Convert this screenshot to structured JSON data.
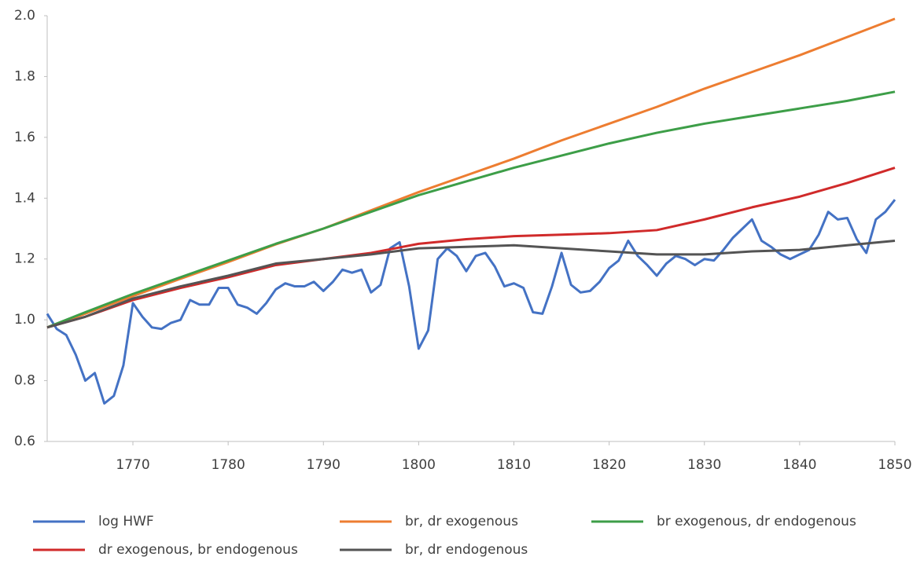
{
  "chart_data": {
    "type": "line",
    "xlim": [
      1761,
      1850
    ],
    "xticks": [
      1770,
      1780,
      1790,
      1800,
      1810,
      1820,
      1830,
      1840,
      1850
    ],
    "ylim": [
      0.6,
      2.0
    ],
    "yticks": [
      0.6,
      0.8,
      {
        "value": 1,
        "label": "1.0"
      },
      1.2,
      1.4,
      1.6,
      1.8,
      {
        "value": 2,
        "label": "2.0"
      }
    ],
    "legend": "bottom",
    "series": [
      {
        "name": "log HWF",
        "color": "#4472c4",
        "x": [
          1761,
          1762,
          1763,
          1764,
          1765,
          1766,
          1767,
          1768,
          1769,
          1770,
          1771,
          1772,
          1773,
          1774,
          1775,
          1776,
          1777,
          1778,
          1779,
          1780,
          1781,
          1782,
          1783,
          1784,
          1785,
          1786,
          1787,
          1788,
          1789,
          1790,
          1791,
          1792,
          1793,
          1794,
          1795,
          1796,
          1797,
          1798,
          1799,
          1800,
          1801,
          1802,
          1803,
          1804,
          1805,
          1806,
          1807,
          1808,
          1809,
          1810,
          1811,
          1812,
          1813,
          1814,
          1815,
          1816,
          1817,
          1818,
          1819,
          1820,
          1821,
          1822,
          1823,
          1824,
          1825,
          1826,
          1827,
          1828,
          1829,
          1830,
          1831,
          1832,
          1833,
          1834,
          1835,
          1836,
          1837,
          1838,
          1839,
          1840,
          1841,
          1842,
          1843,
          1844,
          1845,
          1846,
          1847,
          1848,
          1849,
          1850
        ],
        "values": [
          1.02,
          0.97,
          0.95,
          0.885,
          0.8,
          0.825,
          0.725,
          0.75,
          0.85,
          1.055,
          1.01,
          0.975,
          0.97,
          0.99,
          1.0,
          1.065,
          1.05,
          1.05,
          1.105,
          1.105,
          1.05,
          1.04,
          1.02,
          1.055,
          1.1,
          1.12,
          1.11,
          1.11,
          1.125,
          1.095,
          1.125,
          1.165,
          1.155,
          1.165,
          1.09,
          1.115,
          1.235,
          1.255,
          1.11,
          0.905,
          0.965,
          1.2,
          1.235,
          1.21,
          1.16,
          1.21,
          1.22,
          1.175,
          1.11,
          1.12,
          1.105,
          1.025,
          1.02,
          1.11,
          1.22,
          1.115,
          1.09,
          1.095,
          1.125,
          1.17,
          1.195,
          1.26,
          1.21,
          1.18,
          1.145,
          1.185,
          1.21,
          1.2,
          1.18,
          1.2,
          1.195,
          1.23,
          1.27,
          1.3,
          1.33,
          1.26,
          1.24,
          1.215,
          1.2,
          1.215,
          1.23,
          1.28,
          1.355,
          1.33,
          1.335,
          1.265,
          1.22,
          1.33,
          1.355,
          1.395
        ]
      },
      {
        "name": "br, dr exogenous",
        "color": "#ed7d31",
        "x": [
          1761,
          1765,
          1770,
          1775,
          1780,
          1785,
          1790,
          1795,
          1800,
          1805,
          1810,
          1815,
          1820,
          1825,
          1830,
          1835,
          1840,
          1845,
          1850
        ],
        "values": [
          0.975,
          1.02,
          1.078,
          1.135,
          1.19,
          1.248,
          1.3,
          1.36,
          1.42,
          1.475,
          1.53,
          1.59,
          1.645,
          1.7,
          1.76,
          1.815,
          1.87,
          1.93,
          1.99
        ]
      },
      {
        "name": "br exogenous, dr endogenous",
        "color": "#3d9e48",
        "x": [
          1761,
          1765,
          1770,
          1775,
          1780,
          1785,
          1790,
          1795,
          1800,
          1805,
          1810,
          1815,
          1820,
          1825,
          1830,
          1835,
          1840,
          1845,
          1850
        ],
        "values": [
          0.975,
          1.025,
          1.085,
          1.14,
          1.195,
          1.25,
          1.3,
          1.355,
          1.41,
          1.455,
          1.5,
          1.54,
          1.58,
          1.615,
          1.645,
          1.67,
          1.695,
          1.72,
          1.75
        ]
      },
      {
        "name": "dr exogenous, br endogenous",
        "color": "#d02a2a",
        "x": [
          1761,
          1765,
          1770,
          1775,
          1780,
          1785,
          1790,
          1795,
          1800,
          1805,
          1810,
          1815,
          1820,
          1825,
          1830,
          1835,
          1840,
          1845,
          1850
        ],
        "values": [
          0.975,
          1.01,
          1.065,
          1.105,
          1.14,
          1.18,
          1.2,
          1.22,
          1.25,
          1.265,
          1.275,
          1.28,
          1.285,
          1.295,
          1.33,
          1.37,
          1.405,
          1.45,
          1.5
        ]
      },
      {
        "name": "br, dr endogenous",
        "color": "#545454",
        "x": [
          1761,
          1765,
          1770,
          1775,
          1780,
          1785,
          1790,
          1795,
          1800,
          1805,
          1810,
          1815,
          1820,
          1825,
          1830,
          1835,
          1840,
          1845,
          1850
        ],
        "values": [
          0.975,
          1.01,
          1.07,
          1.11,
          1.145,
          1.185,
          1.2,
          1.215,
          1.235,
          1.24,
          1.245,
          1.235,
          1.225,
          1.215,
          1.215,
          1.225,
          1.23,
          1.245,
          1.26
        ]
      }
    ]
  }
}
